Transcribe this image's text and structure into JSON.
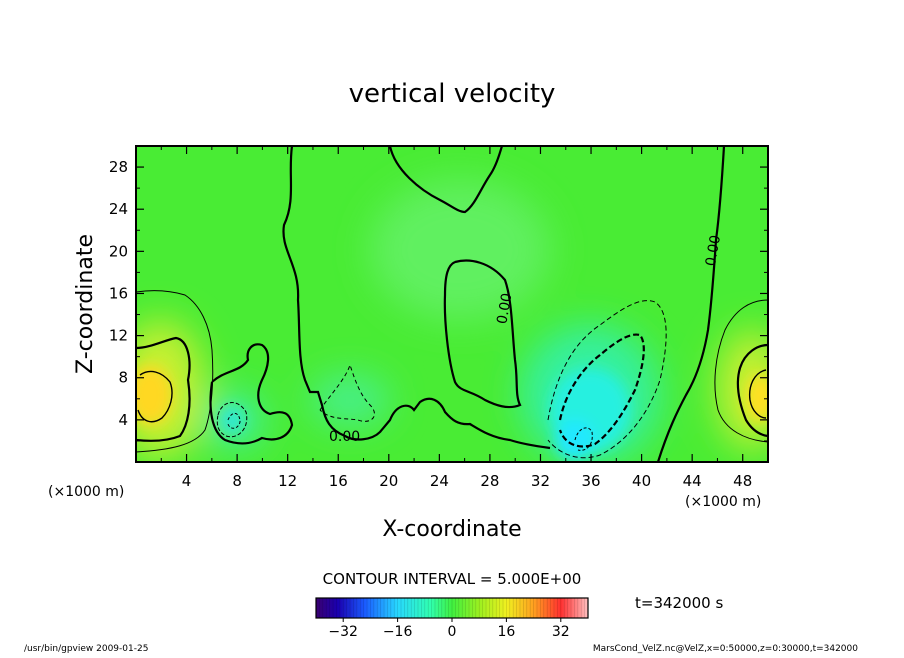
{
  "chart_data": {
    "type": "heatmap",
    "title": "vertical velocity",
    "xlabel": "X-coordinate",
    "ylabel": "Z-coordinate",
    "x_unit_left": "(×1000 m)",
    "x_unit_right": "(×1000 m)",
    "xlim": [
      0,
      50
    ],
    "ylim": [
      0,
      30
    ],
    "x_ticks": [
      "4",
      "8",
      "12",
      "16",
      "20",
      "24",
      "28",
      "32",
      "36",
      "40",
      "44",
      "48"
    ],
    "x_tick_values": [
      4,
      8,
      12,
      16,
      20,
      24,
      28,
      32,
      36,
      40,
      44,
      48
    ],
    "y_ticks": [
      "4",
      "8",
      "12",
      "16",
      "20",
      "24",
      "28"
    ],
    "y_tick_values": [
      4,
      8,
      12,
      16,
      20,
      24,
      28
    ],
    "contour_interval_text": "CONTOUR INTERVAL = 5.000E+00",
    "contour_labels": [
      {
        "text": "0.00",
        "x": 16.5,
        "y": 2.0
      },
      {
        "text": "0.00",
        "x": 29.5,
        "y": 14.5
      },
      {
        "text": "0.00",
        "x": 46.0,
        "y": 20.0
      }
    ],
    "features": [
      {
        "kind": "max",
        "x": 1.2,
        "y": 6.0,
        "value": 25
      },
      {
        "kind": "max",
        "x": 48.8,
        "y": 6.0,
        "value": 22
      },
      {
        "kind": "min",
        "x": 35.5,
        "y": 5.0,
        "value": -20
      },
      {
        "kind": "min",
        "x": 7.5,
        "y": 4.0,
        "value": -12
      }
    ],
    "time_label": "t=342000 s",
    "colorbar": {
      "min": -40,
      "max": 40,
      "tick_labels": [
        "-32",
        "-16",
        "0",
        "16",
        "32"
      ],
      "tick_values": [
        -32,
        -16,
        0,
        16,
        32
      ]
    }
  },
  "footer": {
    "left": "/usr/bin/gpview  2009-01-25",
    "right": "MarsCond_VelZ.nc@VelZ,x=0:50000,z=0:30000,t=342000"
  }
}
